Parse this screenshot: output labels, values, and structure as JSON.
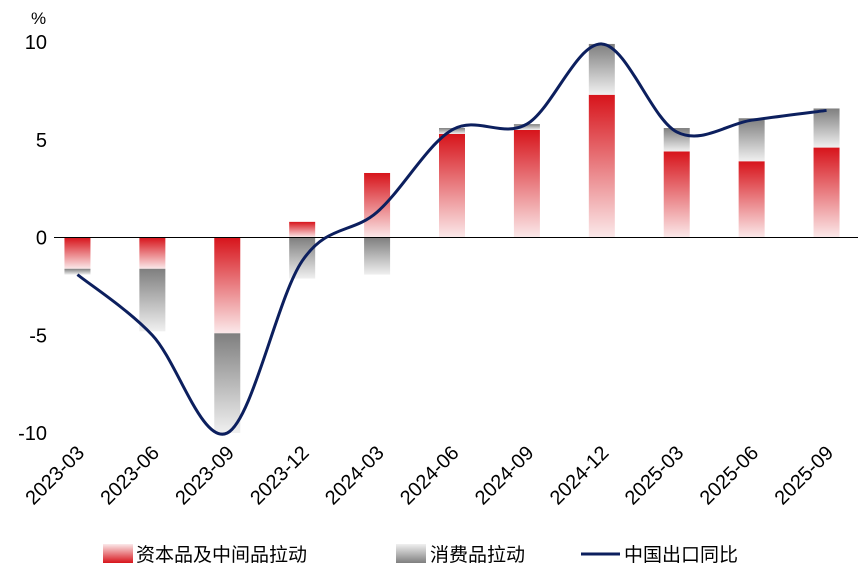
{
  "chart_data": {
    "type": "bar",
    "unit_label": "%",
    "categories": [
      "2023-03",
      "2023-06",
      "2023-09",
      "2023-12",
      "2024-03",
      "2024-06",
      "2024-09",
      "2024-12",
      "2025-03",
      "2025-06",
      "2025-09"
    ],
    "ylim": [
      -10,
      10
    ],
    "yticks": [
      "10",
      "5",
      "0",
      "-5",
      "-10"
    ],
    "ytick_values": [
      10,
      5,
      0,
      -5,
      -10
    ],
    "grid": false,
    "legend_position": "bottom",
    "series": [
      {
        "name": "资本品及中间品拉动",
        "kind": "bar",
        "color": "#d7141b",
        "values": [
          -1.6,
          -1.6,
          -4.9,
          0.8,
          3.3,
          5.3,
          5.5,
          7.3,
          4.4,
          3.9,
          4.6
        ]
      },
      {
        "name": "消费品拉动",
        "kind": "bar",
        "color": "#7f7f7f",
        "values": [
          -0.3,
          -3.2,
          -5.1,
          -2.1,
          -1.9,
          0.3,
          0.3,
          2.6,
          1.2,
          2.2,
          2.0
        ]
      },
      {
        "name": "中国出口同比",
        "kind": "line",
        "color": "#0c1f5e",
        "values": [
          -1.9,
          -5.0,
          -10.0,
          -1.2,
          1.3,
          5.5,
          5.8,
          9.9,
          5.4,
          6.0,
          6.5
        ]
      }
    ]
  }
}
